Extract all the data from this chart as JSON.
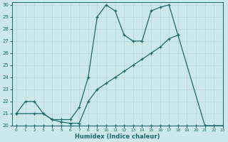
{
  "xlabel": "Humidex (Indice chaleur)",
  "xlim": [
    -0.5,
    23
  ],
  "ylim": [
    20,
    30.2
  ],
  "yticks": [
    20,
    21,
    22,
    23,
    24,
    25,
    26,
    27,
    28,
    29,
    30
  ],
  "xticks": [
    0,
    1,
    2,
    3,
    4,
    5,
    6,
    7,
    8,
    9,
    10,
    11,
    12,
    13,
    14,
    15,
    16,
    17,
    18,
    19,
    20,
    21,
    22,
    23
  ],
  "bg_color": "#cde8ea",
  "line_color": "#1a6b6b",
  "grid_color": "#b8d4d6",
  "curve1_x": [
    0,
    1,
    2,
    3,
    4,
    5,
    6,
    7,
    8,
    9,
    10,
    11,
    12,
    13,
    14,
    15,
    16,
    17,
    18,
    21,
    22,
    23
  ],
  "curve1_y": [
    21,
    22,
    22,
    21,
    20.5,
    20.5,
    20.5,
    21.5,
    24,
    29,
    30,
    29.5,
    27.5,
    27,
    27,
    29.5,
    29.8,
    30,
    27.5,
    20,
    20,
    20
  ],
  "curve2_x": [
    0,
    2,
    3,
    4,
    5,
    6,
    7,
    8,
    9,
    10,
    11,
    12,
    13,
    14,
    15,
    16,
    17,
    18
  ],
  "curve2_y": [
    21,
    21,
    21,
    20.5,
    20.3,
    20.2,
    20.2,
    22,
    23,
    23.5,
    24,
    24.5,
    25,
    25.5,
    26,
    26.5,
    27.2,
    27.5
  ],
  "curve3_x": [
    0,
    1,
    2,
    3,
    4,
    5,
    6,
    7,
    8,
    9,
    10,
    11,
    12,
    13,
    14,
    15,
    16,
    17,
    18,
    19,
    20,
    21,
    22,
    23
  ],
  "curve3_y": [
    20,
    20,
    20,
    20,
    20,
    20,
    20,
    20,
    20,
    20,
    20,
    20,
    20,
    20,
    20,
    20,
    20,
    20,
    20,
    20,
    20,
    20,
    20,
    20
  ]
}
